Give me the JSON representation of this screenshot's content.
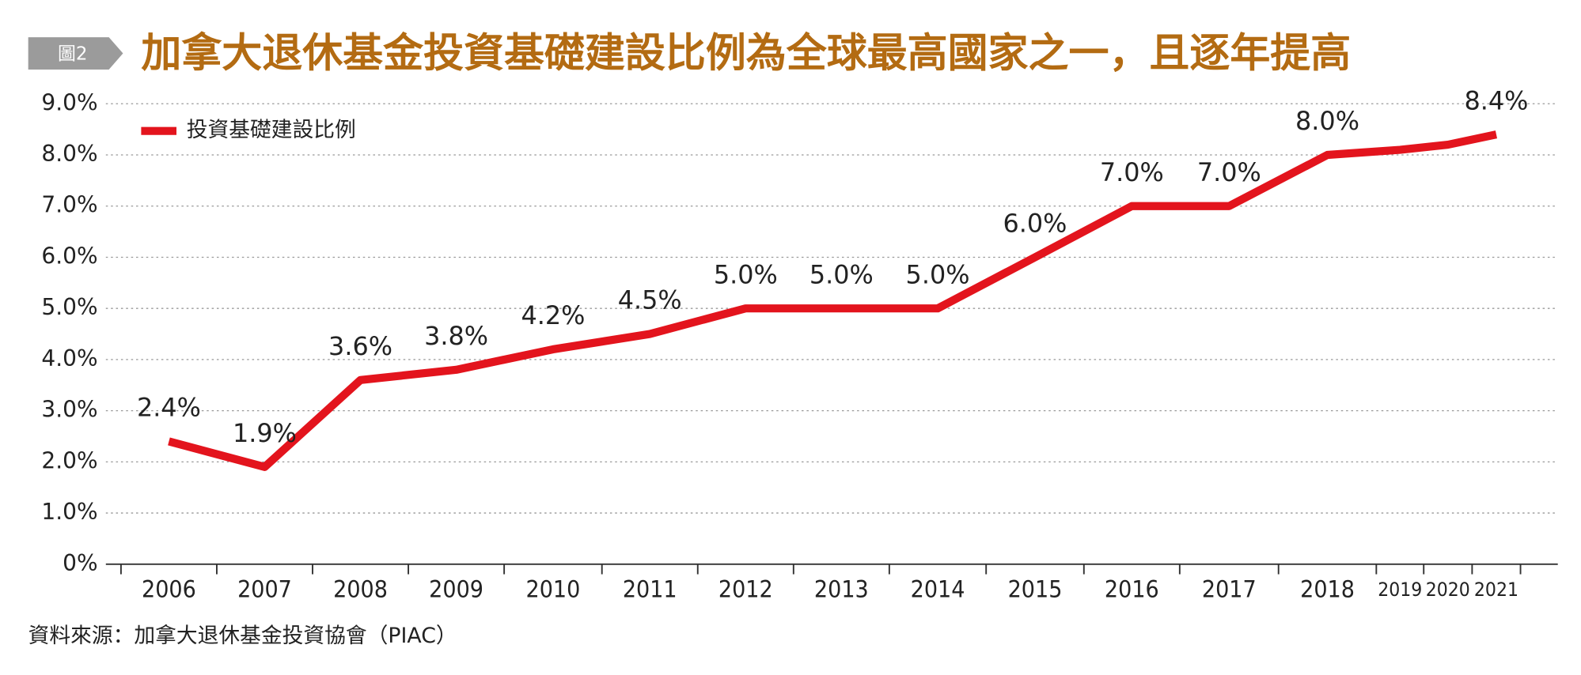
{
  "badge": "圖2",
  "source": "資料來源：加拿大退休基金投資協會（PIAC）",
  "chart_data": {
    "type": "line",
    "title": "加拿大退休基金投資基礎建設比例為全球最高國家之一，且逐年提高",
    "categories": [
      "2006",
      "2007",
      "2008",
      "2009",
      "2010",
      "2011",
      "2012",
      "2013",
      "2014",
      "2015",
      "2016",
      "2017",
      "2018",
      "2019",
      "2020",
      "2021"
    ],
    "series": [
      {
        "name": "投資基礎建設比例",
        "color": "#e3141d",
        "values": [
          2.4,
          1.9,
          3.6,
          3.8,
          4.2,
          4.5,
          5.0,
          5.0,
          5.0,
          6.0,
          7.0,
          7.0,
          8.0,
          8.1,
          8.2,
          8.4
        ],
        "value_labels": [
          "2.4%",
          "1.9%",
          "3.6%",
          "3.8%",
          "4.2%",
          "4.5%",
          "5.0%",
          "5.0%",
          "5.0%",
          "6.0%",
          "7.0%",
          "7.0%",
          "8.0%",
          null,
          null,
          "8.4%"
        ]
      }
    ],
    "ylim": [
      0,
      9
    ],
    "yticks": [
      {
        "value": 0,
        "label": "0%"
      },
      {
        "value": 1,
        "label": "1.0%"
      },
      {
        "value": 2,
        "label": "2.0%"
      },
      {
        "value": 3,
        "label": "3.0%"
      },
      {
        "value": 4,
        "label": "4.0%"
      },
      {
        "value": 5,
        "label": "5.0%"
      },
      {
        "value": 6,
        "label": "6.0%"
      },
      {
        "value": 7,
        "label": "7.0%"
      },
      {
        "value": 8,
        "label": "8.0%"
      },
      {
        "value": 9,
        "label": "9.0%"
      }
    ],
    "grid": true,
    "legend": "top-left"
  }
}
